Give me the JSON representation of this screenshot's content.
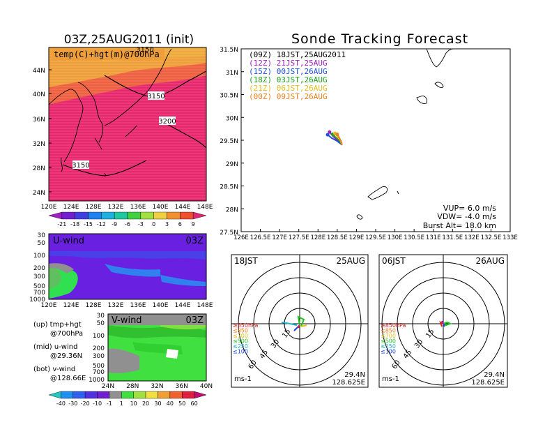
{
  "header": {
    "left_title": "03Z,25AUG2011 (init)",
    "right_title": "Sonde Tracking Forecast"
  },
  "temp_map": {
    "label": "temp(C)+hgt(m)@700hPa",
    "lat_ticks": [
      "44N",
      "40N",
      "36N",
      "32N",
      "28N",
      "24N"
    ],
    "lon_ticks": [
      "120E",
      "124E",
      "128E",
      "132E",
      "136E",
      "140E",
      "144E",
      "148E"
    ],
    "contour_labels": [
      "3150",
      "3200",
      "3150",
      "3150"
    ],
    "colorbar_labels": [
      "-21",
      "-18",
      "-15",
      "-12",
      "-9",
      "-6",
      "-3",
      "0",
      "3",
      "6",
      "9"
    ],
    "colors": {
      "orange": "#ef9f3a",
      "red_orange": "#ef6040",
      "magenta": "#e8286e",
      "gold": "#f0c040"
    }
  },
  "uwind": {
    "label": "U-wind",
    "time": "03Z",
    "p_ticks": [
      "30",
      "50",
      "100",
      "200",
      "300",
      "500",
      "700",
      "1000"
    ],
    "lon_ticks": [
      "120E",
      "124E",
      "128E",
      "132E",
      "136E",
      "140E",
      "144E",
      "148E"
    ]
  },
  "vwind": {
    "label": "V-wind",
    "time": "03Z",
    "p_ticks": [
      "30",
      "50",
      "100",
      "200",
      "300",
      "500",
      "700",
      "1000"
    ],
    "lat_ticks": [
      "24N",
      "28N",
      "32N",
      "36N",
      "40N"
    ]
  },
  "legend_notes": {
    "up_line1": "(up) tmp+hgt",
    "up_line2": "@700hPa",
    "mid_line1": "(mid) u-wind",
    "mid_line2": "@29.36N",
    "bot_line1": "(bot) v-wind",
    "bot_line2": "@128.66E"
  },
  "wind_colorbar_labels": [
    "-40",
    "-30",
    "-20",
    "-10",
    "-1",
    "1",
    "10",
    "20",
    "30",
    "40",
    "50",
    "60"
  ],
  "track_map": {
    "lat_ticks": [
      "31.5N",
      "31N",
      "30.5N",
      "30N",
      "29.5N",
      "29N",
      "28.5N",
      "28N",
      "27.5N"
    ],
    "lon_ticks": [
      "126E",
      "126.5E",
      "127E",
      "127.5E",
      "128E",
      "128.5E",
      "129E",
      "129.5E",
      "130E",
      "130.5E",
      "131E",
      "131.5E",
      "132E",
      "132.5E",
      "133E"
    ],
    "legend": [
      {
        "text": "(09Z)  18JST,25AUG2011",
        "color": "#000000"
      },
      {
        "text": "(12Z)  21JST,25AUG",
        "color": "#a020c0"
      },
      {
        "text": "(15Z)  00JST,26AUG",
        "color": "#2050e0"
      },
      {
        "text": "(18Z)  03JST,26AUG",
        "color": "#20a020"
      },
      {
        "text": "(21Z)  06JST,26AUG",
        "color": "#e0c020"
      },
      {
        "text": "(00Z)  09JST,26AUG",
        "color": "#f08020"
      }
    ],
    "vup": "VUP= 6.0 m/s",
    "vdw": "VDW= -4.0 m/s",
    "burst": "Burst Alt= 18.0 km"
  },
  "hodo_left": {
    "time": "18JST",
    "date": "25AUG",
    "ring_labels": [
      "15",
      "30",
      "45",
      "60"
    ],
    "levels": [
      {
        "text": "≥850hPa",
        "color": "#e02020"
      },
      {
        "text": "≤850",
        "color": "#f08020"
      },
      {
        "text": "≤700",
        "color": "#e0c020"
      },
      {
        "text": "≤500",
        "color": "#20c020"
      },
      {
        "text": "≤250",
        "color": "#20b0d0"
      },
      {
        "text": "≤100",
        "color": "#2040e0"
      }
    ],
    "lat": "29.4N",
    "lon": "128.625E",
    "unit": "ms-1"
  },
  "hodo_right": {
    "time": "06JST",
    "date": "26AUG",
    "ring_labels": [
      "15",
      "30",
      "45",
      "60"
    ],
    "levels": [
      {
        "text": "≥850hPa",
        "color": "#e02020"
      },
      {
        "text": "≤850",
        "color": "#f08020"
      },
      {
        "text": "≤700",
        "color": "#e0c020"
      },
      {
        "text": "≤500",
        "color": "#20c020"
      },
      {
        "text": "≤250",
        "color": "#20b0d0"
      },
      {
        "text": "≤100",
        "color": "#2040e0"
      }
    ],
    "lat": "29.4N",
    "lon": "128.625E",
    "unit": "ms-1"
  },
  "chart_data": [
    {
      "type": "heatmap",
      "title": "03Z,25AUG2011 (init)",
      "subtitle": "temp(C)+hgt(m)@700hPa",
      "x_range": [
        120,
        149
      ],
      "y_range": [
        22,
        47
      ],
      "colorbar": [
        -21,
        -18,
        -15,
        -12,
        -9,
        -6,
        -3,
        0,
        3,
        6,
        9
      ],
      "contours": [
        3150,
        3200,
        3150,
        3150
      ]
    },
    {
      "type": "line",
      "title": "Sonde Tracking Forecast",
      "x_range": [
        126,
        133
      ],
      "y_range": [
        27.5,
        31.5
      ],
      "series": [
        {
          "name": "(09Z) 18JST,25AUG2011",
          "x": [
            128.625,
            128.55,
            128.45,
            128.4
          ],
          "y": [
            29.4,
            29.5,
            29.55,
            29.62
          ]
        },
        {
          "name": "(12Z) 21JST,25AUG",
          "x": [
            128.625,
            128.5,
            128.4,
            128.3
          ],
          "y": [
            29.4,
            29.5,
            29.58,
            29.68
          ]
        },
        {
          "name": "(15Z) 00JST,26AUG",
          "x": [
            128.625,
            128.5,
            128.35,
            128.25
          ],
          "y": [
            29.4,
            29.48,
            29.55,
            29.62
          ]
        },
        {
          "name": "(18Z) 03JST,26AUG",
          "x": [
            128.625,
            128.55,
            128.45,
            128.38
          ],
          "y": [
            29.4,
            29.5,
            29.57,
            29.63
          ]
        },
        {
          "name": "(21Z) 06JST,26AUG",
          "x": [
            128.625,
            128.58,
            128.5,
            128.44
          ],
          "y": [
            29.4,
            29.5,
            29.58,
            29.65
          ]
        },
        {
          "name": "(00Z) 09JST,26AUG",
          "x": [
            128.625,
            128.6,
            128.55,
            128.5
          ],
          "y": [
            29.4,
            29.48,
            29.56,
            29.63
          ]
        }
      ]
    }
  ]
}
